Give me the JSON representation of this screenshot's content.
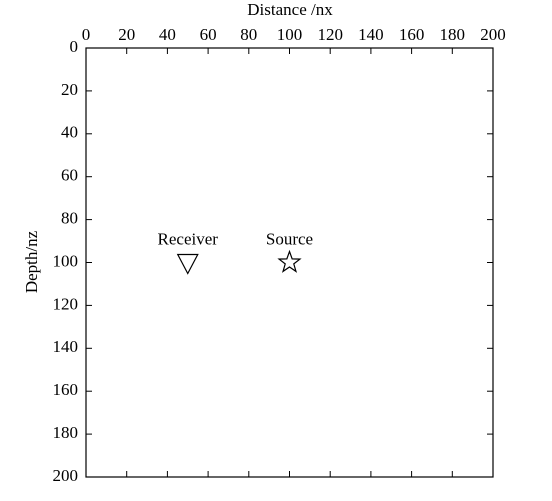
{
  "chart_data": {
    "type": "scatter",
    "xlabel": "Distance /nx",
    "ylabel": "Depth/nz",
    "xlim": [
      0,
      200
    ],
    "xticks": [
      0,
      20,
      40,
      60,
      80,
      100,
      120,
      140,
      160,
      180,
      200
    ],
    "xaxis_position": "top",
    "ylim": [
      0,
      200
    ],
    "yticks": [
      0,
      20,
      40,
      60,
      80,
      100,
      120,
      140,
      160,
      180,
      200
    ],
    "invert_y": true,
    "series": [
      {
        "name": "Receiver",
        "marker": "triangle-down",
        "color": "#000000",
        "x": [
          50
        ],
        "values": [
          100
        ]
      },
      {
        "name": "Source",
        "marker": "star",
        "color": "#000000",
        "x": [
          100
        ],
        "values": [
          100
        ]
      }
    ]
  }
}
